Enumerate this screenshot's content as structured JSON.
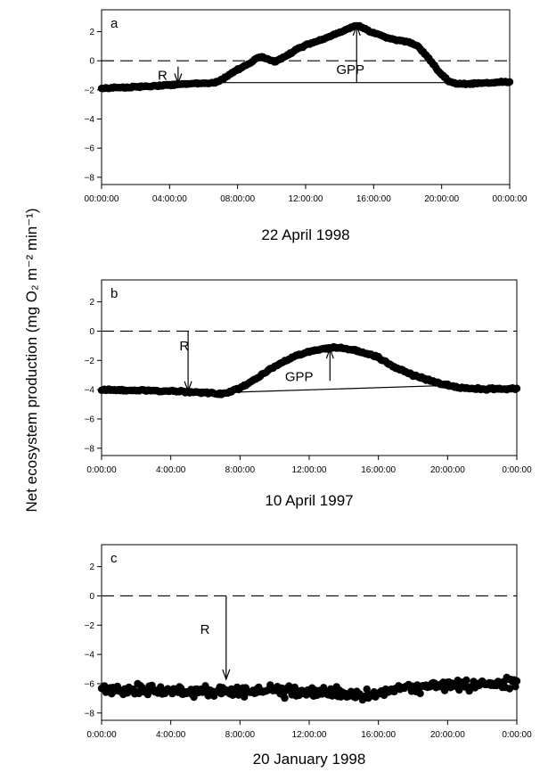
{
  "figure": {
    "ylabel": "Net ecosystem production (mg O₂ m⁻² min⁻¹)"
  },
  "chart_data": [
    {
      "type": "scatter",
      "panel_label": "a",
      "xlabel": "22 April 1998",
      "x_tick_labels": [
        "00:00:00",
        "04:00:00",
        "08:00:00",
        "12:00:00",
        "16:00:00",
        "20:00:00",
        "00:00:00"
      ],
      "xlim_hours": [
        0,
        24
      ],
      "ylim": [
        -8.5,
        3.5
      ],
      "y_ticks": [
        2,
        0,
        -2,
        -4,
        -6,
        -8
      ],
      "zero_line": "dashed",
      "series_profile": [
        [
          0,
          -1.9
        ],
        [
          1,
          -1.85
        ],
        [
          2,
          -1.8
        ],
        [
          3,
          -1.75
        ],
        [
          4,
          -1.65
        ],
        [
          5,
          -1.6
        ],
        [
          6,
          -1.55
        ],
        [
          6.7,
          -1.5
        ],
        [
          7.2,
          -1.2
        ],
        [
          8,
          -0.6
        ],
        [
          8.8,
          -0.1
        ],
        [
          9.3,
          0.3
        ],
        [
          9.8,
          0.1
        ],
        [
          10.2,
          -0.1
        ],
        [
          10.8,
          0.3
        ],
        [
          11.5,
          0.8
        ],
        [
          12.5,
          1.3
        ],
        [
          13.5,
          1.7
        ],
        [
          14.3,
          2.1
        ],
        [
          14.9,
          2.4
        ],
        [
          15.3,
          2.3
        ],
        [
          16,
          1.9
        ],
        [
          17,
          1.5
        ],
        [
          18,
          1.3
        ],
        [
          18.6,
          1.0
        ],
        [
          19.2,
          0.2
        ],
        [
          19.8,
          -0.7
        ],
        [
          20.4,
          -1.4
        ],
        [
          21,
          -1.6
        ],
        [
          22,
          -1.55
        ],
        [
          23,
          -1.5
        ],
        [
          24,
          -1.45
        ]
      ],
      "noise": 0.08,
      "points_per_hour": 12,
      "baseline": [
        [
          0,
          -1.9
        ],
        [
          6.5,
          -1.5
        ],
        [
          21,
          -1.5
        ]
      ],
      "annotations": [
        {
          "text": "R",
          "x": 3.3,
          "y": -1.0,
          "arrow_from": [
            4.5,
            -0.4
          ],
          "arrow_to": [
            4.5,
            -1.55
          ]
        },
        {
          "text": "GPP",
          "x": 13.8,
          "y": -0.6,
          "arrow_from": [
            15,
            -1.5
          ],
          "arrow_to": [
            15,
            2.4
          ]
        }
      ]
    },
    {
      "type": "scatter",
      "panel_label": "b",
      "xlabel": "10 April 1997",
      "x_tick_labels": [
        "0:00:00",
        "4:00:00",
        "8:00:00",
        "12:00:00",
        "16:00:00",
        "20:00:00",
        "0:00:00"
      ],
      "xlim_hours": [
        0,
        24
      ],
      "ylim": [
        -8.5,
        3.5
      ],
      "y_ticks": [
        2,
        0,
        -2,
        -4,
        -6,
        -8
      ],
      "zero_line": "dashed",
      "series_profile": [
        [
          0,
          -4.0
        ],
        [
          2,
          -4.05
        ],
        [
          4,
          -4.1
        ],
        [
          5,
          -4.15
        ],
        [
          6,
          -4.2
        ],
        [
          7,
          -4.3
        ],
        [
          8,
          -3.9
        ],
        [
          9,
          -3.2
        ],
        [
          10,
          -2.4
        ],
        [
          11,
          -1.8
        ],
        [
          12,
          -1.4
        ],
        [
          12.8,
          -1.2
        ],
        [
          13.5,
          -1.1
        ],
        [
          14.2,
          -1.2
        ],
        [
          15,
          -1.4
        ],
        [
          16,
          -1.8
        ],
        [
          17,
          -2.5
        ],
        [
          18,
          -3.0
        ],
        [
          19,
          -3.4
        ],
        [
          20,
          -3.7
        ],
        [
          21,
          -3.9
        ],
        [
          22,
          -3.95
        ],
        [
          23,
          -3.95
        ],
        [
          24,
          -3.95
        ]
      ],
      "noise": 0.1,
      "points_per_hour": 12,
      "baseline": [
        [
          7,
          -4.2
        ],
        [
          20.3,
          -3.7
        ]
      ],
      "annotations": [
        {
          "text": "R",
          "x": 4.5,
          "y": -1.0,
          "arrow_from": [
            5,
            0
          ],
          "arrow_to": [
            5,
            -4.1
          ]
        },
        {
          "text": "GPP",
          "x": 10.6,
          "y": -3.1,
          "arrow_from": [
            13.2,
            -3.4
          ],
          "arrow_to": [
            13.2,
            -1.2
          ]
        }
      ]
    },
    {
      "type": "scatter",
      "panel_label": "c",
      "xlabel": "20 January 1998",
      "x_tick_labels": [
        "0:00:00",
        "4:00:00",
        "8:00:00",
        "12:00:00",
        "16:00:00",
        "20:00:00",
        "0:00:00"
      ],
      "xlim_hours": [
        0,
        24
      ],
      "ylim": [
        -8.5,
        3.5
      ],
      "y_ticks": [
        2,
        0,
        -2,
        -4,
        -6,
        -8
      ],
      "zero_line": "dashed",
      "series_profile": [
        [
          0,
          -6.4
        ],
        [
          3,
          -6.4
        ],
        [
          6,
          -6.5
        ],
        [
          8,
          -6.5
        ],
        [
          10,
          -6.5
        ],
        [
          12,
          -6.6
        ],
        [
          14,
          -6.7
        ],
        [
          16,
          -6.6
        ],
        [
          18,
          -6.3
        ],
        [
          20,
          -6.1
        ],
        [
          22,
          -6.0
        ],
        [
          24,
          -6.0
        ]
      ],
      "noise": 0.55,
      "points_per_hour": 12,
      "baseline": [
        [
          7.2,
          -6.5
        ],
        [
          11,
          -6.5
        ]
      ],
      "annotations": [
        {
          "text": "R",
          "x": 5.7,
          "y": -2.3,
          "arrow_from": [
            7.2,
            0
          ],
          "arrow_to": [
            7.2,
            -5.7
          ]
        }
      ]
    }
  ]
}
